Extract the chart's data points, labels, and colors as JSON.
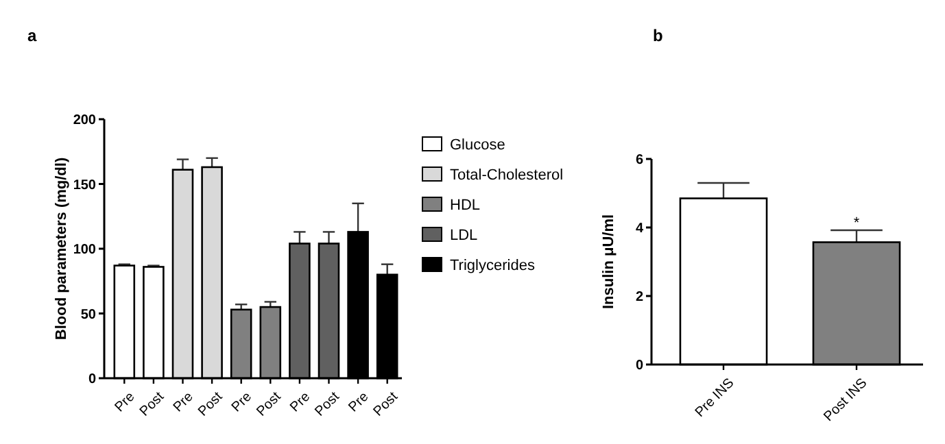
{
  "chart_data": [
    {
      "type": "bar",
      "title": "a",
      "ylabel": "Blood parameters (mg/dl)",
      "categories": [
        "Pre",
        "Post",
        "Pre",
        "Post",
        "Pre",
        "Post",
        "Pre",
        "Post",
        "Pre",
        "Post"
      ],
      "series": [
        {
          "name": "Glucose",
          "color": "#ffffff",
          "values": [
            87,
            86,
            null,
            null,
            null,
            null,
            null,
            null,
            null,
            null
          ],
          "errors": [
            1,
            1,
            null,
            null,
            null,
            null,
            null,
            null,
            null,
            null
          ]
        },
        {
          "name": "Total-Cholesterol",
          "color": "#d9d9d9",
          "values": [
            null,
            null,
            161,
            163,
            null,
            null,
            null,
            null,
            null,
            null
          ],
          "errors": [
            null,
            null,
            8,
            7,
            null,
            null,
            null,
            null,
            null,
            null
          ]
        },
        {
          "name": "HDL",
          "color": "#808080",
          "values": [
            null,
            null,
            null,
            null,
            53,
            55,
            null,
            null,
            null,
            null
          ],
          "errors": [
            null,
            null,
            null,
            null,
            4,
            4,
            null,
            null,
            null,
            null
          ]
        },
        {
          "name": "LDL",
          "color": "#606060",
          "values": [
            null,
            null,
            null,
            null,
            null,
            null,
            104,
            104,
            null,
            null
          ],
          "errors": [
            null,
            null,
            null,
            null,
            null,
            null,
            9,
            9,
            null,
            null
          ]
        },
        {
          "name": "Triglycerides",
          "color": "#000000",
          "values": [
            null,
            null,
            null,
            null,
            null,
            null,
            null,
            null,
            113,
            80
          ],
          "errors": [
            null,
            null,
            null,
            null,
            null,
            null,
            null,
            null,
            22,
            8
          ]
        }
      ],
      "ylim": [
        0,
        200
      ],
      "yticks": [
        0,
        50,
        100,
        150,
        200
      ],
      "legend": "right",
      "grid": false
    },
    {
      "type": "bar",
      "title": "b",
      "ylabel": "Insulin μU/ml",
      "categories": [
        "Pre INS",
        "Post INS"
      ],
      "series": [
        {
          "colors": [
            "#ffffff",
            "#808080"
          ],
          "values": [
            4.85,
            3.57
          ],
          "errors": [
            0.45,
            0.35
          ]
        }
      ],
      "ylim": [
        0,
        6
      ],
      "yticks": [
        0,
        2,
        4,
        6
      ],
      "annotations": [
        {
          "text": "*",
          "x": "Post INS",
          "y": 4.0
        }
      ],
      "grid": false
    }
  ]
}
